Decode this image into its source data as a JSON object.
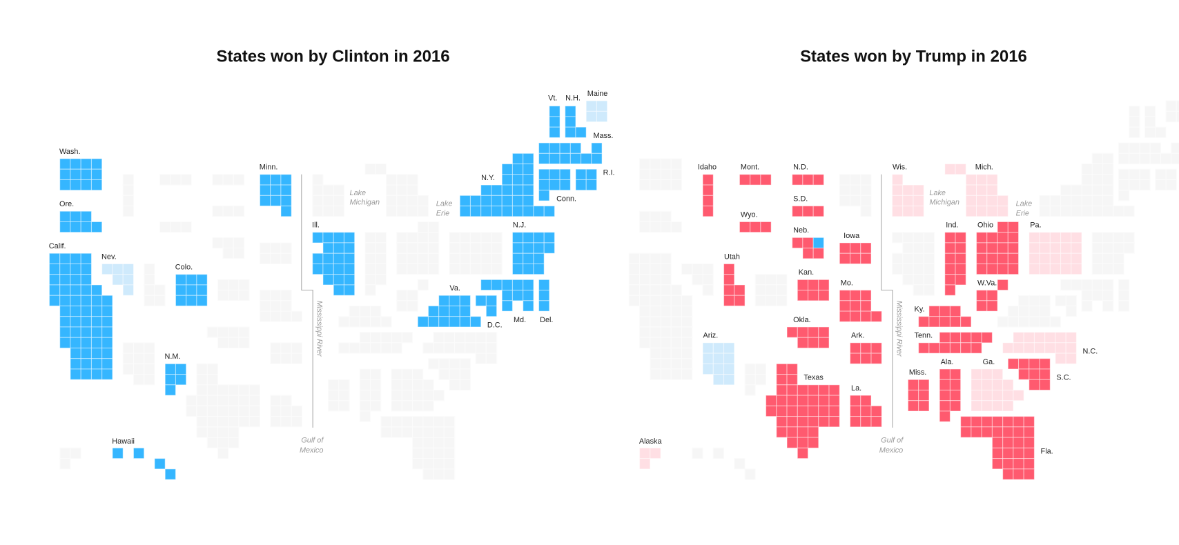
{
  "colors": {
    "blue": "#35b6ff",
    "lightblue": "#cfeafc",
    "red": "#ff5a6f",
    "pink": "#ffdfe4",
    "gray": "#f6f6f6"
  },
  "water_labels": {
    "lake_michigan": [
      "Lake",
      "Michigan"
    ],
    "lake_erie": [
      "Lake",
      "Erie"
    ],
    "mississippi": "Mississippi River",
    "gulf": [
      "Gulf of",
      "Mexico"
    ]
  },
  "maps": [
    {
      "id": "clinton",
      "title": "States won by Clinton in 2016",
      "states": {
        "WA": {
          "label": "Wash.",
          "ev": 12,
          "shade": "blue"
        },
        "OR": {
          "label": "Ore.",
          "ev": 7,
          "shade": "blue"
        },
        "CA": {
          "label": "Calif.",
          "ev": 55,
          "shade": "blue"
        },
        "NV": {
          "label": "Nev.",
          "ev": 6,
          "shade": "lightblue"
        },
        "CO": {
          "label": "Colo.",
          "ev": 9,
          "shade": "blue"
        },
        "NM": {
          "label": "N.M.",
          "ev": 5,
          "shade": "blue"
        },
        "HI": {
          "label": "Hawaii",
          "ev": 4,
          "shade": "blue"
        },
        "MN": {
          "label": "Minn.",
          "ev": 10,
          "shade": "blue"
        },
        "IL": {
          "label": "Ill.",
          "ev": 20,
          "shade": "blue"
        },
        "NY": {
          "label": "N.Y.",
          "ev": 29,
          "shade": "blue"
        },
        "VT": {
          "label": "Vt.",
          "ev": 3,
          "shade": "blue"
        },
        "NH": {
          "label": "N.H.",
          "ev": 4,
          "shade": "blue"
        },
        "ME": {
          "label": "Maine",
          "ev": 4,
          "shade": "lightblue"
        },
        "MA": {
          "label": "Mass.",
          "ev": 11,
          "shade": "blue"
        },
        "RI": {
          "label": "R.I.",
          "ev": 4,
          "shade": "blue"
        },
        "CT": {
          "label": "Conn.",
          "ev": 7,
          "shade": "blue"
        },
        "NJ": {
          "label": "N.J.",
          "ev": 14,
          "shade": "blue"
        },
        "VA": {
          "label": "Va.",
          "ev": 13,
          "shade": "blue"
        },
        "DC": {
          "label": "D.C.",
          "ev": 3,
          "shade": "blue"
        },
        "MD": {
          "label": "Md.",
          "ev": 10,
          "shade": "blue"
        },
        "DE": {
          "label": "Del.",
          "ev": 3,
          "shade": "blue"
        },
        "ID": {
          "ev": 4,
          "shade": "gray"
        },
        "MT": {
          "ev": 3,
          "shade": "gray"
        },
        "WY": {
          "ev": 3,
          "shade": "gray"
        },
        "UT": {
          "ev": 6,
          "shade": "gray"
        },
        "AZ": {
          "ev": 11,
          "shade": "gray"
        },
        "ND": {
          "ev": 3,
          "shade": "gray"
        },
        "SD": {
          "ev": 3,
          "shade": "gray"
        },
        "NE": {
          "ev": 5,
          "shade": "gray"
        },
        "KS": {
          "ev": 6,
          "shade": "gray"
        },
        "OK": {
          "ev": 7,
          "shade": "gray"
        },
        "TX": {
          "ev": 38,
          "shade": "gray"
        },
        "IA": {
          "ev": 6,
          "shade": "gray"
        },
        "MO": {
          "ev": 10,
          "shade": "gray"
        },
        "AR": {
          "ev": 6,
          "shade": "gray"
        },
        "LA": {
          "ev": 8,
          "shade": "gray"
        },
        "WI": {
          "ev": 10,
          "shade": "gray"
        },
        "MI": {
          "ev": 16,
          "shade": "gray"
        },
        "IN": {
          "ev": 11,
          "shade": "gray"
        },
        "OH": {
          "ev": 18,
          "shade": "gray"
        },
        "PA": {
          "ev": 20,
          "shade": "gray"
        },
        "WV": {
          "ev": 5,
          "shade": "gray"
        },
        "KY": {
          "ev": 8,
          "shade": "gray"
        },
        "TN": {
          "ev": 11,
          "shade": "gray"
        },
        "MS": {
          "ev": 6,
          "shade": "gray"
        },
        "AL": {
          "ev": 9,
          "shade": "gray"
        },
        "GA": {
          "ev": 16,
          "shade": "gray"
        },
        "SC": {
          "ev": 9,
          "shade": "gray"
        },
        "NC": {
          "ev": 15,
          "shade": "gray"
        },
        "FL": {
          "ev": 29,
          "shade": "gray"
        },
        "AK": {
          "ev": 3,
          "shade": "gray"
        }
      }
    },
    {
      "id": "trump",
      "title": "States won by Trump in 2016",
      "states": {
        "ID": {
          "label": "Idaho",
          "ev": 4,
          "shade": "red"
        },
        "MT": {
          "label": "Mont.",
          "ev": 3,
          "shade": "red"
        },
        "WY": {
          "label": "Wyo.",
          "ev": 3,
          "shade": "red"
        },
        "UT": {
          "label": "Utah",
          "ev": 6,
          "shade": "red"
        },
        "AZ": {
          "label": "Ariz.",
          "ev": 11,
          "shade": "lightblue"
        },
        "ND": {
          "label": "N.D.",
          "ev": 3,
          "shade": "red"
        },
        "SD": {
          "label": "S.D.",
          "ev": 3,
          "shade": "red"
        },
        "NE": {
          "label": "Neb.",
          "ev": 5,
          "shade": "red",
          "split_cell": 2,
          "split_shade": "blue"
        },
        "KS": {
          "label": "Kan.",
          "ev": 6,
          "shade": "red"
        },
        "OK": {
          "label": "Okla.",
          "ev": 7,
          "shade": "red"
        },
        "TX": {
          "label": "Texas",
          "ev": 38,
          "shade": "red"
        },
        "IA": {
          "label": "Iowa",
          "ev": 6,
          "shade": "red"
        },
        "MO": {
          "label": "Mo.",
          "ev": 10,
          "shade": "red"
        },
        "AR": {
          "label": "Ark.",
          "ev": 6,
          "shade": "red"
        },
        "LA": {
          "label": "La.",
          "ev": 8,
          "shade": "red"
        },
        "WI": {
          "label": "Wis.",
          "ev": 10,
          "shade": "pink"
        },
        "MI": {
          "label": "Mich.",
          "ev": 16,
          "shade": "pink"
        },
        "IN": {
          "label": "Ind.",
          "ev": 11,
          "shade": "red"
        },
        "OH": {
          "label": "Ohio",
          "ev": 18,
          "shade": "red"
        },
        "PA": {
          "label": "Pa.",
          "ev": 20,
          "shade": "pink"
        },
        "WV": {
          "label": "W.Va.",
          "ev": 5,
          "shade": "red"
        },
        "KY": {
          "label": "Ky.",
          "ev": 8,
          "shade": "red"
        },
        "TN": {
          "label": "Tenn.",
          "ev": 11,
          "shade": "red"
        },
        "MS": {
          "label": "Miss.",
          "ev": 6,
          "shade": "red"
        },
        "AL": {
          "label": "Ala.",
          "ev": 9,
          "shade": "red"
        },
        "GA": {
          "label": "Ga.",
          "ev": 16,
          "shade": "pink"
        },
        "SC": {
          "label": "S.C.",
          "ev": 9,
          "shade": "red"
        },
        "NC": {
          "label": "N.C.",
          "ev": 15,
          "shade": "pink"
        },
        "FL": {
          "label": "Fla.",
          "ev": 29,
          "shade": "red"
        },
        "AK": {
          "label": "Alaska",
          "ev": 3,
          "shade": "pink"
        },
        "WA": {
          "ev": 12,
          "shade": "gray"
        },
        "OR": {
          "ev": 7,
          "shade": "gray"
        },
        "CA": {
          "ev": 55,
          "shade": "gray"
        },
        "NV": {
          "ev": 6,
          "shade": "gray"
        },
        "CO": {
          "ev": 9,
          "shade": "gray"
        },
        "NM": {
          "ev": 5,
          "shade": "gray"
        },
        "HI": {
          "ev": 4,
          "shade": "gray"
        },
        "MN": {
          "ev": 10,
          "shade": "gray"
        },
        "IL": {
          "ev": 20,
          "shade": "gray"
        },
        "NY": {
          "ev": 29,
          "shade": "gray"
        },
        "VT": {
          "ev": 3,
          "shade": "gray"
        },
        "NH": {
          "ev": 4,
          "shade": "gray"
        },
        "ME": {
          "ev": 4,
          "shade": "gray"
        },
        "MA": {
          "ev": 11,
          "shade": "gray"
        },
        "RI": {
          "ev": 4,
          "shade": "gray"
        },
        "CT": {
          "ev": 7,
          "shade": "gray"
        },
        "NJ": {
          "ev": 14,
          "shade": "gray"
        },
        "VA": {
          "ev": 13,
          "shade": "gray"
        },
        "DC": {
          "ev": 3,
          "shade": "gray"
        },
        "MD": {
          "ev": 10,
          "shade": "gray"
        },
        "DE": {
          "ev": 3,
          "shade": "gray"
        }
      }
    }
  ]
}
